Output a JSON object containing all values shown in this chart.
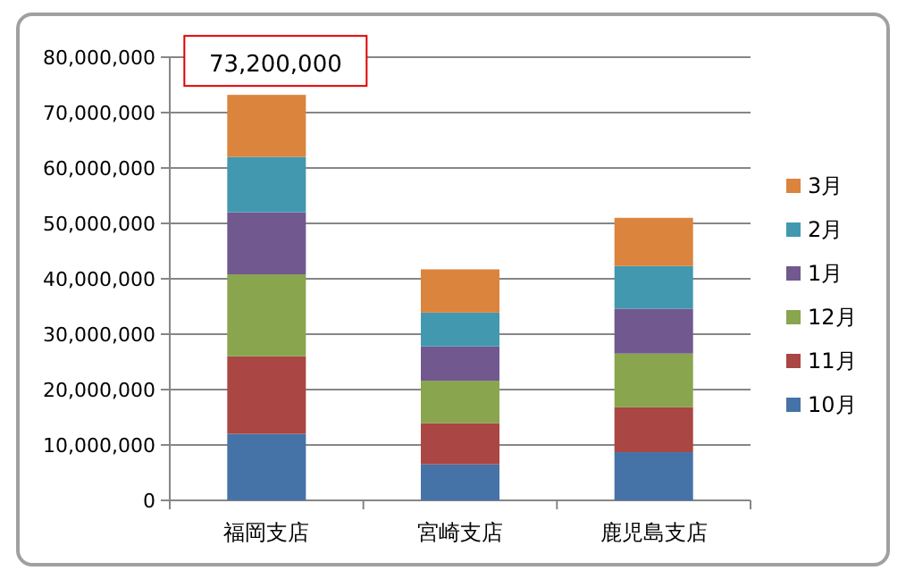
{
  "chart_data": {
    "type": "bar",
    "stacked": true,
    "categories": [
      "福岡支店",
      "宮崎支店",
      "鹿児島支店"
    ],
    "series": [
      {
        "name": "10月",
        "color": "#4572a7",
        "values": [
          12000000,
          6500000,
          8700000
        ]
      },
      {
        "name": "11月",
        "color": "#aa4643",
        "values": [
          14000000,
          7400000,
          8100000
        ]
      },
      {
        "name": "12月",
        "color": "#89a54e",
        "values": [
          14800000,
          7700000,
          9700000
        ]
      },
      {
        "name": "1月",
        "color": "#71588f",
        "values": [
          11200000,
          6200000,
          8100000
        ]
      },
      {
        "name": "2月",
        "color": "#4198af",
        "values": [
          10000000,
          6100000,
          7700000
        ]
      },
      {
        "name": "3月",
        "color": "#db843d",
        "values": [
          11200000,
          7800000,
          8700000
        ]
      }
    ],
    "ylim": [
      0,
      80000000
    ],
    "yticks": [
      {
        "value": 0,
        "label": "0"
      },
      {
        "value": 10000000,
        "label": "10,000,000"
      },
      {
        "value": 20000000,
        "label": "20,000,000"
      },
      {
        "value": 30000000,
        "label": "30,000,000"
      },
      {
        "value": 40000000,
        "label": "40,000,000"
      },
      {
        "value": 50000000,
        "label": "50,000,000"
      },
      {
        "value": 60000000,
        "label": "60,000,000"
      },
      {
        "value": 70000000,
        "label": "70,000,000"
      },
      {
        "value": 80000000,
        "label": "80,000,000"
      }
    ],
    "grid": "y",
    "legend": "right",
    "totals": [
      "73,200,000",
      null,
      null
    ]
  }
}
